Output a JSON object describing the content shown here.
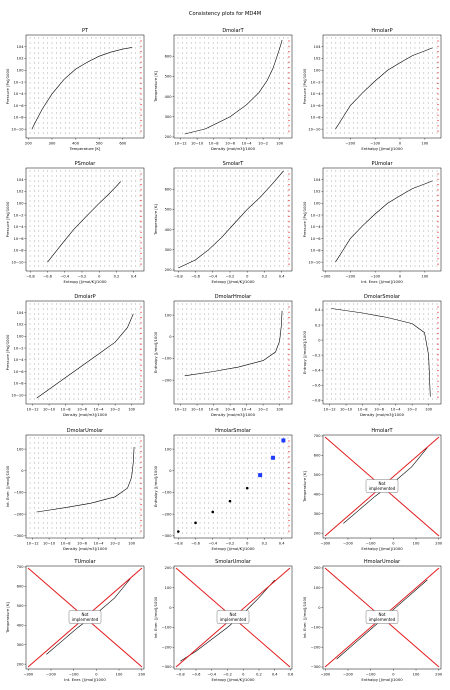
{
  "figure": {
    "suptitle": "Consistency plots for MD4M"
  },
  "colors": {
    "line": "#000000",
    "marker": "#e41a1c",
    "scatter": "#1f3bff",
    "frame": "#000000",
    "grid_point": "#222222"
  },
  "chart_data": [
    {
      "type": "line",
      "title": "PT",
      "xlabel": "Temperature [K]",
      "ylabel": "Pressure [Pa]/1000",
      "xscale": "linear",
      "yscale": "log",
      "xlim": [
        190,
        690
      ],
      "ylim": [
        -11.5,
        6
      ],
      "xticks": [
        200,
        300,
        400,
        500,
        600
      ],
      "yticks": [
        -10,
        -8,
        -6,
        -4,
        -2,
        0,
        2,
        4
      ],
      "series": [
        {
          "name": "",
          "x": [
            215,
            230,
            260,
            300,
            350,
            400,
            450,
            500,
            550,
            600,
            640
          ],
          "y": [
            -10,
            -8.8,
            -6.5,
            -4,
            -1.6,
            0.2,
            1.4,
            2.4,
            3.1,
            3.6,
            3.9
          ]
        }
      ],
      "overlay": ""
    },
    {
      "type": "line",
      "title": "DmolarT",
      "xlabel": "Density [mol/m3]/1000",
      "ylabel": "Temperature [K]",
      "xscale": "log",
      "yscale": "linear",
      "xlim": [
        -12.8,
        1.5
      ],
      "ylim": [
        195,
        705
      ],
      "xticks": [
        -12,
        -10,
        -8,
        -6,
        -4,
        -2,
        0
      ],
      "yticks": [
        200,
        300,
        400,
        500,
        600
      ],
      "series": [
        {
          "name": "",
          "x": [
            -11.5,
            -9,
            -6,
            -4,
            -2.5,
            -1.5,
            -0.8,
            -0.3,
            0.1,
            0.3
          ],
          "y": [
            215,
            240,
            300,
            360,
            420,
            480,
            540,
            600,
            650,
            680
          ]
        }
      ],
      "overlay": ""
    },
    {
      "type": "line",
      "title": "HmolarP",
      "xlabel": "Enthalpy [J/mol]/1000",
      "ylabel": "Pressure [Pa]/1000",
      "xscale": "linear",
      "yscale": "log",
      "xlim": [
        -310,
        165
      ],
      "ylim": [
        -11.5,
        6
      ],
      "xticks": [
        -200,
        -100,
        0,
        100
      ],
      "yticks": [
        -10,
        -8,
        -6,
        -4,
        -2,
        0,
        2,
        4
      ],
      "series": [
        {
          "name": "",
          "x": [
            -260,
            -230,
            -200,
            -150,
            -100,
            -50,
            0,
            50,
            100,
            130
          ],
          "y": [
            -10,
            -8,
            -6,
            -3.8,
            -1.8,
            0,
            1.3,
            2.5,
            3.3,
            3.8
          ]
        }
      ],
      "overlay": ""
    },
    {
      "type": "line",
      "title": "PSmolar",
      "xlabel": "Entropy [J/mol/K]/1000",
      "ylabel": "Pressure [Pa]/1000",
      "xscale": "linear",
      "yscale": "log",
      "xlim": [
        -0.85,
        0.52
      ],
      "ylim": [
        -11.5,
        6
      ],
      "xticks": [
        -0.8,
        -0.6,
        -0.4,
        -0.2,
        0.0,
        0.2,
        0.4
      ],
      "yticks": [
        -10,
        -8,
        -6,
        -4,
        -2,
        0,
        2,
        4
      ],
      "series": [
        {
          "name": "",
          "x": [
            -0.6,
            -0.45,
            -0.3,
            -0.15,
            0,
            0.1,
            0.2,
            0.25
          ],
          "y": [
            -10,
            -7.2,
            -4.5,
            -2.2,
            0,
            1.4,
            2.9,
            3.7
          ]
        }
      ],
      "overlay": ""
    },
    {
      "type": "line",
      "title": "SmolarT",
      "xlabel": "Entropy [J/mol/K]/1000",
      "ylabel": "Temperature [K]",
      "xscale": "linear",
      "yscale": "linear",
      "xlim": [
        -0.85,
        0.52
      ],
      "ylim": [
        195,
        705
      ],
      "xticks": [
        -0.8,
        -0.6,
        -0.4,
        -0.2,
        0.0,
        0.2,
        0.4
      ],
      "yticks": [
        200,
        300,
        400,
        500,
        600
      ],
      "series": [
        {
          "name": "",
          "x": [
            -0.8,
            -0.6,
            -0.45,
            -0.3,
            -0.15,
            0,
            0.15,
            0.3,
            0.42
          ],
          "y": [
            210,
            250,
            300,
            360,
            430,
            500,
            560,
            630,
            690
          ]
        }
      ],
      "overlay": ""
    },
    {
      "type": "line",
      "title": "PUmolar",
      "xlabel": "Int. Ener. [J/mol]/1000",
      "ylabel": "Pressure [Pa]/1000",
      "xscale": "linear",
      "yscale": "log",
      "xlim": [
        -310,
        165
      ],
      "ylim": [
        -11.5,
        6
      ],
      "xticks": [
        -300,
        -200,
        -100,
        0,
        100
      ],
      "yticks": [
        -10,
        -8,
        -6,
        -4,
        -2,
        0,
        2,
        4
      ],
      "series": [
        {
          "name": "",
          "x": [
            -260,
            -230,
            -200,
            -150,
            -100,
            -50,
            0,
            50,
            100,
            130
          ],
          "y": [
            -10,
            -8,
            -6,
            -3.8,
            -1.8,
            0,
            1.3,
            2.5,
            3.3,
            3.8
          ]
        }
      ],
      "overlay": ""
    },
    {
      "type": "line",
      "title": "DmolarP",
      "xlabel": "Density [mol/m3]/1000",
      "ylabel": "Pressure [Pa]/1000",
      "xscale": "log",
      "yscale": "log",
      "xlim": [
        -12.8,
        1.5
      ],
      "ylim": [
        -11.5,
        6
      ],
      "xticks": [
        -12,
        -10,
        -8,
        -6,
        -4,
        -2,
        0
      ],
      "yticks": [
        -10,
        -8,
        -6,
        -4,
        -2,
        0,
        2,
        4
      ],
      "series": [
        {
          "name": "",
          "x": [
            -11.5,
            -10,
            -8,
            -6,
            -4,
            -2,
            -0.5,
            0.2
          ],
          "y": [
            -10.5,
            -9,
            -7,
            -5,
            -3,
            -1,
            1.5,
            3.8
          ]
        }
      ],
      "overlay": ""
    },
    {
      "type": "line",
      "title": "DmolarHmolar",
      "xlabel": "Density [mol/m3]/1000",
      "ylabel": "Enthalpy [J/mol]/1000",
      "xscale": "log",
      "yscale": "linear",
      "xlim": [
        -12.8,
        1.5
      ],
      "ylim": [
        -310,
        165
      ],
      "xticks": [
        -12,
        -10,
        -8,
        -6,
        -4,
        -2,
        0
      ],
      "yticks": [
        -200,
        -100,
        0,
        100
      ],
      "series": [
        {
          "name": "",
          "x": [
            -11.5,
            -8,
            -5,
            -2,
            -0.5,
            0,
            0.2,
            0.3
          ],
          "y": [
            -180,
            -160,
            -140,
            -110,
            -70,
            -20,
            50,
            120
          ]
        }
      ],
      "overlay": ""
    },
    {
      "type": "line",
      "title": "DmolarSmolar",
      "xlabel": "Density [mol/m3]/1000",
      "ylabel": "Entropy [J/mol/K]/1000",
      "xscale": "log",
      "yscale": "linear",
      "xlim": [
        -12.8,
        1.5
      ],
      "ylim": [
        -0.85,
        0.52
      ],
      "xticks": [
        -12,
        -10,
        -8,
        -6,
        -4,
        -2,
        0
      ],
      "yticks": [
        -0.8,
        -0.6,
        -0.4,
        -0.2,
        0.0,
        0.2,
        0.4
      ],
      "series": [
        {
          "name": "",
          "x": [
            -11.8,
            -8,
            -5,
            -2,
            -0.5,
            0,
            0.2
          ],
          "y": [
            0.42,
            0.36,
            0.3,
            0.22,
            0.1,
            -0.2,
            -0.75
          ]
        }
      ],
      "overlay": ""
    },
    {
      "type": "line",
      "title": "DmolarUmolar",
      "xlabel": "Density [mol/m3]/1000",
      "ylabel": "Int. Ener. [J/mol]/1000",
      "xscale": "log",
      "yscale": "linear",
      "xlim": [
        -12.8,
        1.5
      ],
      "ylim": [
        -310,
        165
      ],
      "xticks": [
        -12,
        -10,
        -8,
        -6,
        -4,
        -2,
        0
      ],
      "yticks": [
        -300,
        -200,
        -100,
        0,
        100
      ],
      "series": [
        {
          "name": "",
          "x": [
            -11.5,
            -8,
            -5,
            -2,
            -0.5,
            0,
            0.2,
            0.3
          ],
          "y": [
            -190,
            -170,
            -150,
            -120,
            -80,
            -30,
            40,
            110
          ]
        }
      ],
      "overlay": ""
    },
    {
      "type": "scatter",
      "title": "HmolarSmolar",
      "xlabel": "Entropy [J/mol/K]/1000",
      "ylabel": "Enthalpy [J/mol]/1000",
      "xscale": "linear",
      "yscale": "linear",
      "xlim": [
        -0.85,
        0.52
      ],
      "ylim": [
        -310,
        165
      ],
      "xticks": [
        -0.8,
        -0.6,
        -0.4,
        -0.2,
        0.0,
        0.2,
        0.4
      ],
      "yticks": [
        -300,
        -200,
        -100,
        0,
        100
      ],
      "series": [
        {
          "name": "",
          "x": [
            -0.8,
            -0.6,
            -0.4,
            -0.2,
            0,
            0.15,
            0.3,
            0.42
          ],
          "y": [
            -280,
            -240,
            -190,
            -140,
            -80,
            -20,
            60,
            140
          ]
        }
      ],
      "overlay": ""
    },
    {
      "type": "line",
      "title": "HmolarT",
      "xlabel": "Enthalpy [J/mol]/1000",
      "ylabel": "Temperature [K]",
      "xscale": "linear",
      "yscale": "linear",
      "xlim": [
        -310,
        210
      ],
      "ylim": [
        175,
        705
      ],
      "xticks": [
        -300,
        -200,
        -100,
        0,
        100,
        200
      ],
      "yticks": [
        200,
        300,
        400,
        500,
        600,
        700
      ],
      "series": [
        {
          "name": "",
          "x": [
            -220,
            -150,
            -80,
            0,
            80,
            150
          ],
          "y": [
            250,
            320,
            390,
            460,
            540,
            640
          ]
        }
      ],
      "overlay": "Not\nimplemented"
    },
    {
      "type": "line",
      "title": "TUmolar",
      "xlabel": "Int. Ener. [J/mol]/1000",
      "ylabel": "Temperature [K]",
      "xscale": "linear",
      "yscale": "linear",
      "xlim": [
        -310,
        210
      ],
      "ylim": [
        175,
        705
      ],
      "xticks": [
        -300,
        -200,
        -100,
        0,
        100,
        200
      ],
      "yticks": [
        200,
        300,
        400,
        500,
        600,
        700
      ],
      "series": [
        {
          "name": "",
          "x": [
            -220,
            -150,
            -80,
            0,
            80,
            150
          ],
          "y": [
            250,
            320,
            390,
            460,
            540,
            640
          ]
        }
      ],
      "overlay": "Not\nimplemented"
    },
    {
      "type": "line",
      "title": "SmolarUmolar",
      "xlabel": "Entropy [J/mol/K]/1000",
      "ylabel": "Int. Ener. [J/mol]/1000",
      "xscale": "linear",
      "yscale": "linear",
      "xlim": [
        -0.88,
        0.62
      ],
      "ylim": [
        -310,
        210
      ],
      "xticks": [
        -0.8,
        -0.6,
        -0.4,
        -0.2,
        0.0,
        0.2,
        0.4,
        0.6
      ],
      "yticks": [
        -300,
        -200,
        -100,
        0,
        100,
        200
      ],
      "series": [
        {
          "name": "",
          "x": [
            -0.8,
            -0.6,
            -0.4,
            -0.2,
            0,
            0.2,
            0.4
          ],
          "y": [
            -270,
            -220,
            -160,
            -100,
            -30,
            50,
            140
          ]
        }
      ],
      "overlay": "Not\nimplemented"
    },
    {
      "type": "line",
      "title": "HmolarUmolar",
      "xlabel": "Enthalpy [J/mol]/1000",
      "ylabel": "Int. Ener. [J/mol]/1000",
      "xscale": "linear",
      "yscale": "linear",
      "xlim": [
        -310,
        210
      ],
      "ylim": [
        -310,
        210
      ],
      "xticks": [
        -300,
        -200,
        -100,
        0,
        100,
        200
      ],
      "yticks": [
        -300,
        -200,
        -100,
        0,
        100,
        200
      ],
      "series": [
        {
          "name": "",
          "x": [
            -250,
            -150,
            -50,
            50,
            150
          ],
          "y": [
            -260,
            -160,
            -60,
            40,
            140
          ]
        }
      ],
      "overlay": "Not\nimplemented"
    }
  ]
}
